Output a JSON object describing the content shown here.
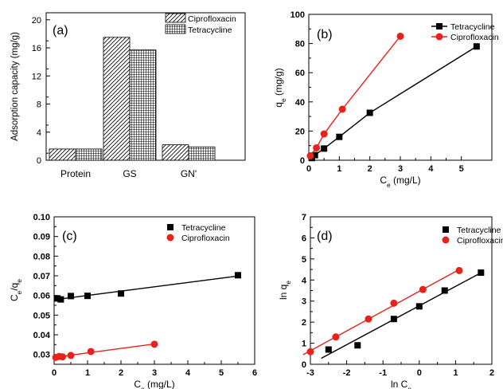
{
  "chart_data": [
    {
      "panel": "(a)",
      "type": "bar",
      "categories": [
        "Protein",
        "GS",
        "GN'"
      ],
      "series": [
        {
          "name": "Ciprofloxacin",
          "values": [
            1.6,
            17.5,
            2.2
          ]
        },
        {
          "name": "Tetracycline",
          "values": [
            1.6,
            15.7,
            1.9
          ]
        }
      ],
      "ylabel": "Adsorption capacity  (mg/g)",
      "ylim": [
        0,
        21
      ],
      "yticks": [
        "0",
        "4",
        "8",
        "12",
        "16",
        "20"
      ],
      "legend": "top-right",
      "colors": {
        "ciprofloxacin": "#000000",
        "tetracycline": "#000000"
      }
    },
    {
      "panel": "(b)",
      "type": "line",
      "xlabel_main": "C",
      "xlabel_sub": "e",
      "xlabel_unit": "(mg/L)",
      "ylabel_main": "q",
      "ylabel_sub": "e",
      "ylabel_unit": "(mg/g)",
      "xlim": [
        0,
        6
      ],
      "ylim": [
        0,
        100
      ],
      "xticks": [
        "0",
        "1",
        "2",
        "3",
        "4",
        "5"
      ],
      "yticks": [
        "0",
        "20",
        "40",
        "60",
        "80",
        "100"
      ],
      "legend": "top-right",
      "series": [
        {
          "name": "Tetracycline",
          "color": "#000000",
          "marker": "square",
          "x": [
            0.1,
            0.2,
            0.5,
            1.0,
            2.0,
            5.5
          ],
          "y": [
            1.5,
            3.5,
            8,
            16,
            32.5,
            78
          ]
        },
        {
          "name": "Ciprofloxacin",
          "color": "#e8221b",
          "marker": "circle",
          "x": [
            0.05,
            0.25,
            0.5,
            1.1,
            3.0
          ],
          "y": [
            3,
            8.5,
            18,
            35,
            85
          ]
        }
      ]
    },
    {
      "panel": "(c)",
      "type": "line",
      "xlabel_main": "C",
      "xlabel_sub": "e",
      "xlabel_unit": "(mg/L)",
      "ylabel_main": "C",
      "ylabel_sub": "e",
      "ylabel_mid": "/q",
      "ylabel_sub2": "e",
      "xlim": [
        0,
        6
      ],
      "ylim": [
        0.025,
        0.1
      ],
      "xticks": [
        "0",
        "1",
        "2",
        "3",
        "4",
        "5",
        "6"
      ],
      "yticks": [
        "0.03",
        "0.04",
        "0.05",
        "0.06",
        "0.07",
        "0.08",
        "0.09",
        "0.10"
      ],
      "legend": "top-right",
      "series": [
        {
          "name": "Tetracycline",
          "color": "#000000",
          "marker": "square",
          "x": [
            0.1,
            0.2,
            0.5,
            1.0,
            2.0,
            5.5
          ],
          "y": [
            0.0585,
            0.058,
            0.0597,
            0.0598,
            0.061,
            0.0703
          ]
        },
        {
          "name": "Ciprofloxacin",
          "color": "#e8221b",
          "marker": "circle",
          "x": [
            0.05,
            0.15,
            0.25,
            0.5,
            1.1,
            3.0
          ],
          "y": [
            0.0285,
            0.029,
            0.0288,
            0.0295,
            0.0315,
            0.0352
          ]
        }
      ]
    },
    {
      "panel": "(d)",
      "type": "line",
      "xlabel_main": "ln C",
      "xlabel_sub": "e",
      "ylabel_main": "ln q",
      "ylabel_sub": "e",
      "xlim": [
        -3,
        2
      ],
      "ylim": [
        0,
        7
      ],
      "xticks": [
        "-3",
        "-2",
        "-1",
        "0",
        "1",
        "2"
      ],
      "yticks": [
        "0",
        "1",
        "2",
        "3",
        "4",
        "5",
        "6",
        "7"
      ],
      "legend": "top-right",
      "series": [
        {
          "name": "Tetracycline",
          "color": "#000000",
          "marker": "square",
          "x": [
            -2.5,
            -1.7,
            -0.7,
            0.0,
            0.7,
            1.7
          ],
          "y": [
            0.7,
            0.9,
            2.15,
            2.75,
            3.5,
            4.35
          ]
        },
        {
          "name": "Ciprofloxacin",
          "color": "#e8221b",
          "marker": "circle",
          "x": [
            -3.0,
            -2.3,
            -1.4,
            -0.7,
            0.1,
            1.1
          ],
          "y": [
            0.6,
            1.3,
            2.15,
            2.9,
            3.55,
            4.45
          ]
        }
      ]
    }
  ]
}
